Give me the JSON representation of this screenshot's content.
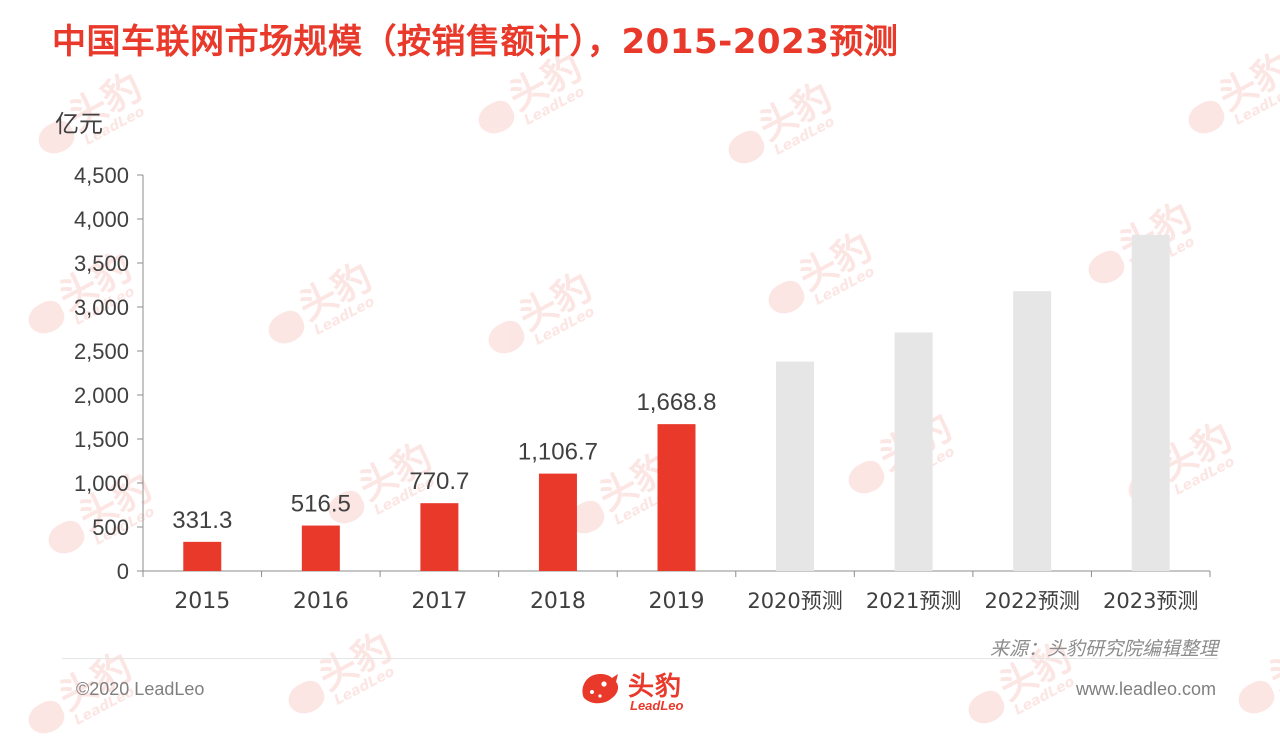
{
  "title": "中国车联网市场规模（按销售额计），2015-2023预测",
  "chart_data": {
    "type": "bar",
    "title": "中国车联网市场规模（按销售额计），2015-2023预测",
    "unit_label": "亿元",
    "ylim": [
      0,
      4500
    ],
    "yticks": [
      "0",
      "500",
      "1,000",
      "1,500",
      "2,000",
      "2,500",
      "3,000",
      "3,500",
      "4,000",
      "4,500"
    ],
    "ytick_values": [
      0,
      500,
      1000,
      1500,
      2000,
      2500,
      3000,
      3500,
      4000,
      4500
    ],
    "categories": [
      "2015",
      "2016",
      "2017",
      "2018",
      "2019",
      "2020预测",
      "2021预测",
      "2022预测",
      "2023预测"
    ],
    "values": [
      331.3,
      516.5,
      770.7,
      1106.7,
      1668.8,
      2380,
      2710,
      3180,
      3820
    ],
    "value_labels": [
      "331.3",
      "516.5",
      "770.7",
      "1,106.7",
      "1,668.8",
      "",
      "",
      "",
      ""
    ],
    "bar_colors": [
      "#e8392b",
      "#e8392b",
      "#e8392b",
      "#e8392b",
      "#e8392b",
      "#e6e6e6",
      "#e6e6e6",
      "#e6e6e6",
      "#e6e6e6"
    ],
    "grid": false,
    "legend": "none"
  },
  "source": "来源：头豹研究院编辑整理",
  "footer": {
    "copyright": "©2020 LeadLeo",
    "website": "www.leadleo.com",
    "logo_cn": "头豹",
    "logo_en": "LeadLeo"
  },
  "watermark": {
    "text_cn": "头豹",
    "text_en": "LeadLeo"
  },
  "colors": {
    "accent": "#e8392b",
    "forecast_bar": "#e6e6e6",
    "text": "#404040",
    "axis": "#8c8c8c"
  }
}
